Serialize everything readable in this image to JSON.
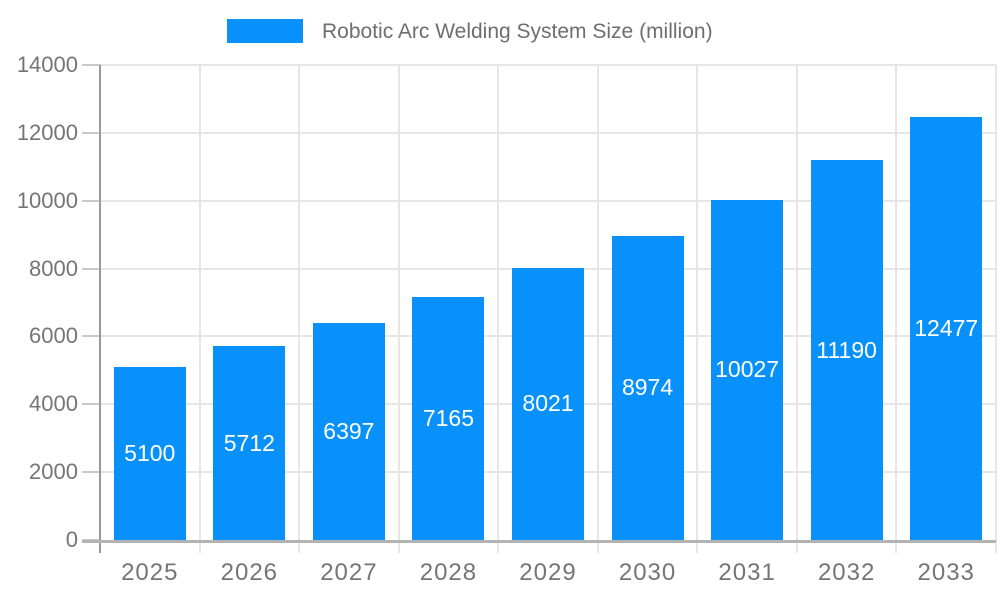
{
  "legend": {
    "label": "Robotic Arc Welding System Size (million)"
  },
  "chart_data": {
    "type": "bar",
    "title": "Robotic Arc Welding System Size (million)",
    "series_name": "Robotic Arc Welding System Size (million)",
    "categories": [
      "2025",
      "2026",
      "2027",
      "2028",
      "2029",
      "2030",
      "2031",
      "2032",
      "2033"
    ],
    "values": [
      5100,
      5712,
      6397,
      7165,
      8021,
      8974,
      10027,
      11190,
      12477
    ],
    "bar_value_labels": [
      "5100",
      "5712",
      "6397",
      "7165",
      "8021",
      "8974",
      "10027",
      "11190",
      "12477"
    ],
    "xlabel": "",
    "ylabel": "",
    "ylim": [
      0,
      14000
    ],
    "ytick_step": 2000,
    "ytick_labels": [
      "0",
      "2000",
      "4000",
      "6000",
      "8000",
      "10000",
      "12000",
      "14000"
    ],
    "grid": true,
    "legend_position": "top-center",
    "annotation_position": "inside-center",
    "colors": {
      "bar": "#0991fb",
      "bar_label_text": "#ffffff",
      "axis_text": "#757575",
      "legend_text": "#6e6e6e",
      "gridline": "#e6e6e6",
      "tick": "#c9c9c9",
      "y_axis_line": "#999999",
      "baseline": "#b3b3b3",
      "background": "#ffffff"
    }
  }
}
